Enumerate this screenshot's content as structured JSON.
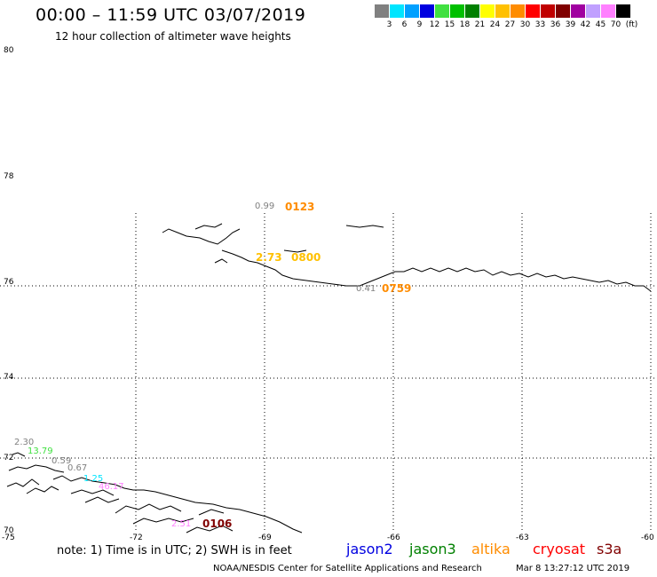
{
  "header": {
    "title": "00:00 – 11:59 UTC 03/07/2019",
    "subtitle": "12 hour collection of altimeter wave heights"
  },
  "scale": {
    "unit": "(ft)",
    "colors": [
      "#808080",
      "#00e5ff",
      "#00a0ff",
      "#0000e0",
      "#40e040",
      "#00c000",
      "#008000",
      "#ffff00",
      "#ffc000",
      "#ff8c00",
      "#ff0000",
      "#c00000",
      "#800000",
      "#a000a0",
      "#c0a0ff",
      "#ff80ff",
      "#000000"
    ],
    "labels": [
      "3",
      "6",
      "9",
      "12",
      "15",
      "18",
      "21",
      "24",
      "27",
      "30",
      "33",
      "36",
      "39",
      "42",
      "45",
      "70"
    ]
  },
  "axes": {
    "lat_labels": [
      "80",
      "78",
      "76",
      "74",
      "72",
      "70"
    ],
    "lon_labels": [
      "-75",
      "-72",
      "-69",
      "-66",
      "-63",
      "-60"
    ]
  },
  "annotations": {
    "a1": {
      "text": "0.99",
      "color": "#808080"
    },
    "a2": {
      "text": "0123",
      "color": "#ff8c00"
    },
    "a3": {
      "text": "2.73",
      "color": "#ffc000"
    },
    "a4": {
      "text": "0800",
      "color": "#ffc000"
    },
    "a5": {
      "text": "0.41",
      "color": "#808080"
    },
    "a6": {
      "text": "0759",
      "color": "#ff8c00"
    },
    "a7": {
      "text": "2.30",
      "color": "#808080"
    },
    "a8": {
      "text": "13.79",
      "color": "#40e040"
    },
    "a9": {
      "text": "0.59",
      "color": "#808080"
    },
    "a10": {
      "text": "0.67",
      "color": "#808080"
    },
    "a11": {
      "text": "1.25",
      "color": "#00e5ff"
    },
    "a12": {
      "text": "46.17",
      "color": "#ff80ff"
    },
    "a13": {
      "text": "2.51",
      "color": "#ff80ff"
    },
    "a14": {
      "text": "0106",
      "color": "#800000"
    }
  },
  "footer": {
    "note": "note: 1) Time is in UTC; 2) SWH is in feet",
    "sats": [
      {
        "name": "jason2",
        "color": "#0000e0"
      },
      {
        "name": "jason3",
        "color": "#008000"
      },
      {
        "name": "altika",
        "color": "#ff8c00"
      },
      {
        "name": "cryosat",
        "color": "#ff0000"
      },
      {
        "name": "s3a",
        "color": "#800000"
      }
    ],
    "credit": "NOAA/NESDIS Center for Satellite Applications and Research",
    "timestamp": "Mar  8 13:27:12 UTC 2019"
  }
}
